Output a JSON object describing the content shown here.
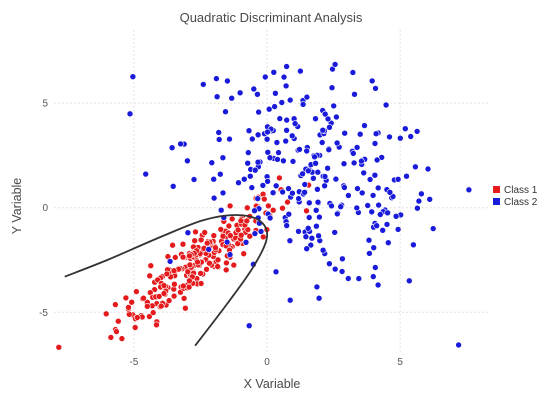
{
  "chart_data": {
    "type": "scatter",
    "title": "Quadratic Discriminant Analysis",
    "xlabel": "X Variable",
    "ylabel": "Y Variable",
    "xlim": [
      -8,
      8.3
    ],
    "ylim": [
      -6.9,
      8.5
    ],
    "xticks": [
      -5,
      0,
      5
    ],
    "yticks": [
      -5,
      0,
      5
    ],
    "grid": true,
    "legend_position": "right",
    "series": [
      {
        "name": "Class 1",
        "color": "#e41a1c",
        "center": [
          -2.6,
          -2.6
        ],
        "spread": [
          1.5,
          1.55
        ],
        "corr": 0.9,
        "n": 240
      },
      {
        "name": "Class 2",
        "color": "#1a1adb",
        "center": [
          1.8,
          1.4
        ],
        "spread": [
          2.4,
          2.5
        ],
        "corr": -0.35,
        "n": 280
      }
    ],
    "decision_boundary": {
      "upper_arc": [
        [
          -7.6,
          -3.3
        ],
        [
          -6.0,
          -2.5
        ],
        [
          -4.0,
          -1.4
        ],
        [
          -2.4,
          -0.6
        ],
        [
          -1.2,
          -0.35
        ],
        [
          -0.3,
          -0.6
        ],
        [
          0.0,
          -1.4
        ],
        [
          -0.5,
          -2.8
        ],
        [
          -1.5,
          -4.6
        ],
        [
          -2.7,
          -6.6
        ]
      ]
    }
  }
}
